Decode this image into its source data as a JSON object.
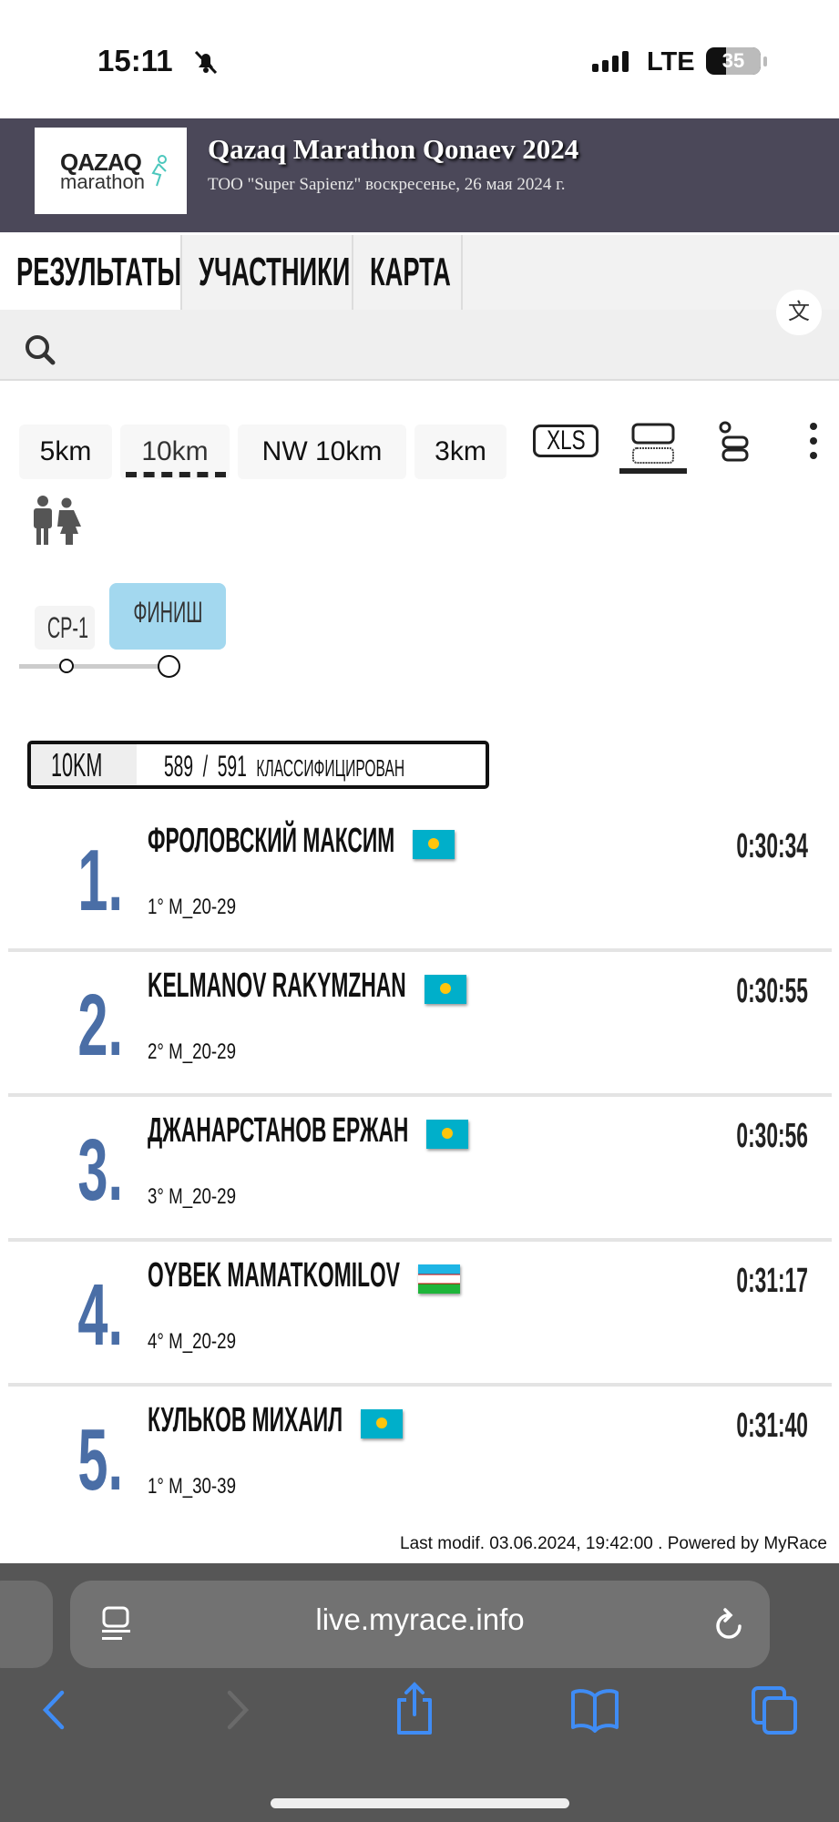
{
  "status_bar": {
    "time": "15:11",
    "network": "LTE",
    "battery": "35"
  },
  "header": {
    "logo_top": "QAZAQ",
    "logo_bottom": "marathon",
    "title": "Qazaq Marathon Qonaev 2024",
    "subtitle": "ТОО \"Super Sapienz\" воскресенье, 26 мая 2024 г."
  },
  "nav_tabs": [
    {
      "label": "РЕЗУЛЬТАТЫ",
      "active": true
    },
    {
      "label": "УЧАСТНИКИ"
    },
    {
      "label": "КАРТА"
    }
  ],
  "translate_icon": "文",
  "distances": [
    {
      "label": "5km"
    },
    {
      "label": "10km",
      "selected": true
    },
    {
      "label": "NW 10km"
    },
    {
      "label": "3km"
    }
  ],
  "tools": {
    "xls": "XLS"
  },
  "checkpoints": [
    {
      "label": "CP-1"
    },
    {
      "label": "ФИНИШ",
      "selected": true
    }
  ],
  "summary": {
    "distance": "10KM",
    "classified": "589",
    "total": "591",
    "separator": "/",
    "label": "КЛАССИФИЦИРОВАН"
  },
  "results": [
    {
      "rank": "1.",
      "name": "ФРОЛОВСКИЙ МАКСИМ",
      "flag": "KZ",
      "time": "0:30:34",
      "category": "1° M_20-29"
    },
    {
      "rank": "2.",
      "name": "KELMANOV RAKYMZHAN",
      "flag": "KZ",
      "time": "0:30:55",
      "category": "2° M_20-29"
    },
    {
      "rank": "3.",
      "name": "ДЖАНАРСТАНОВ ЕРЖАН",
      "flag": "KZ",
      "time": "0:30:56",
      "category": "3° M_20-29"
    },
    {
      "rank": "4.",
      "name": "OYBEK MAMATKOMILOV",
      "flag": "UZ",
      "time": "0:31:17",
      "category": "4° M_20-29"
    },
    {
      "rank": "5.",
      "name": "КУЛЬКОВ МИХАИЛ",
      "flag": "KZ",
      "time": "0:31:40",
      "category": "1° M_30-39"
    }
  ],
  "footer": "Last modif. 03.06.2024, 19:42:00 . Powered by MyRace",
  "browser": {
    "url": "live.myrace.info",
    "accent": "#3f8cf5"
  },
  "colors": {
    "header_bg": "#4b4859",
    "rank": "#4a6ea6",
    "checkpoint_selected": "#a3d8ef"
  }
}
